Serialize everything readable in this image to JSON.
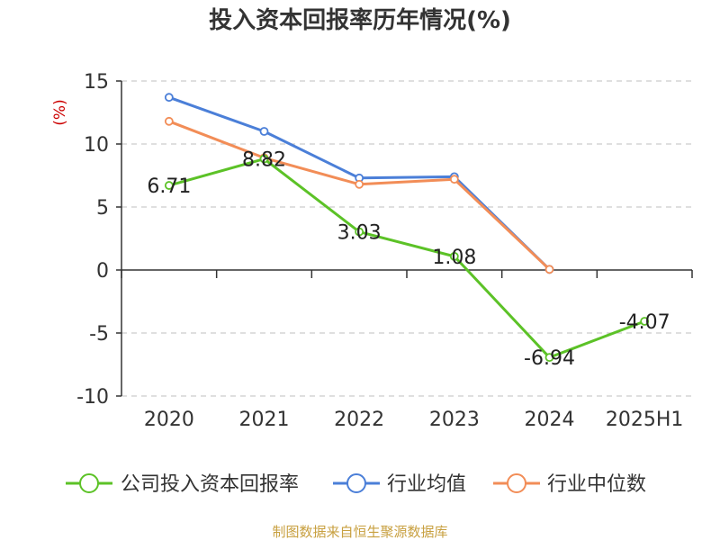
{
  "chart_data": {
    "type": "line",
    "title": "投入资本回报率历年情况(%)",
    "ylabel": "(%)",
    "categories": [
      "2020",
      "2021",
      "2022",
      "2023",
      "2024",
      "2025H1"
    ],
    "ylim": [
      -10,
      15
    ],
    "yticks": [
      15,
      10,
      5,
      0,
      -5,
      -10
    ],
    "grid": true,
    "legend_position": "bottom",
    "series": [
      {
        "name": "公司投入资本回报率",
        "color": "#5cc227",
        "values": [
          6.71,
          8.82,
          3.03,
          1.08,
          -6.94,
          -4.07
        ],
        "labels": [
          "6.71",
          "8.82",
          "3.03",
          "1.08",
          "-6.94",
          "-4.07"
        ]
      },
      {
        "name": "行业均值",
        "color": "#4b7fd8",
        "values": [
          13.7,
          11.0,
          7.3,
          7.4,
          0.05,
          null
        ]
      },
      {
        "name": "行业中位数",
        "color": "#f28d57",
        "values": [
          11.8,
          8.9,
          6.8,
          7.2,
          0.05,
          null
        ]
      }
    ]
  },
  "source": "制图数据来自恒生聚源数据库"
}
